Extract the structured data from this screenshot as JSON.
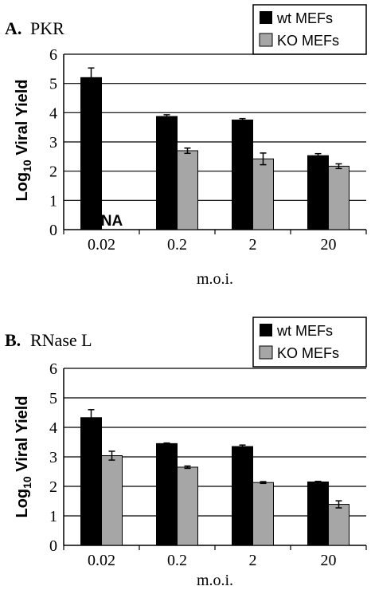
{
  "chart_data": [
    {
      "type": "bar",
      "panel_letter": "A.",
      "panel_name": "PKR",
      "xlabel": "m.o.i.",
      "ylabel_prefix": "Log",
      "ylabel_sub": "10",
      "ylabel_suffix": " Viral Yield",
      "categories": [
        "0.02",
        "0.2",
        "2",
        "20"
      ],
      "ylim": [
        0,
        6
      ],
      "yticks": [
        "0",
        "1",
        "2",
        "3",
        "4",
        "5",
        "6"
      ],
      "grid": true,
      "legend_position": "top-right",
      "series": [
        {
          "name": "wt MEFs",
          "color": "#000000",
          "values": [
            5.2,
            3.87,
            3.75,
            2.53
          ],
          "errors": [
            0.33,
            0.06,
            0.05,
            0.07
          ]
        },
        {
          "name": "KO MEFs",
          "color": "#a6a6a6",
          "values": [
            null,
            2.7,
            2.42,
            2.17
          ],
          "errors": [
            null,
            0.09,
            0.2,
            0.08
          ]
        }
      ],
      "annotations": [
        {
          "text": "NA",
          "category": "0.02",
          "series": "KO MEFs"
        }
      ]
    },
    {
      "type": "bar",
      "panel_letter": "B.",
      "panel_name": "RNase L",
      "xlabel": "m.o.i.",
      "ylabel_prefix": "Log",
      "ylabel_sub": "10",
      "ylabel_suffix": " Viral Yield",
      "categories": [
        "0.02",
        "0.2",
        "2",
        "20"
      ],
      "ylim": [
        0,
        6
      ],
      "yticks": [
        "0",
        "1",
        "2",
        "3",
        "4",
        "5",
        "6"
      ],
      "grid": true,
      "legend_position": "top-right",
      "series": [
        {
          "name": "wt MEFs",
          "color": "#000000",
          "values": [
            4.33,
            3.45,
            3.35,
            2.15
          ],
          "errors": [
            0.27,
            0.02,
            0.05,
            0.02
          ]
        },
        {
          "name": "KO MEFs",
          "color": "#a6a6a6",
          "values": [
            3.04,
            2.65,
            2.13,
            1.39
          ],
          "errors": [
            0.15,
            0.04,
            0.03,
            0.12
          ]
        }
      ],
      "annotations": []
    }
  ]
}
